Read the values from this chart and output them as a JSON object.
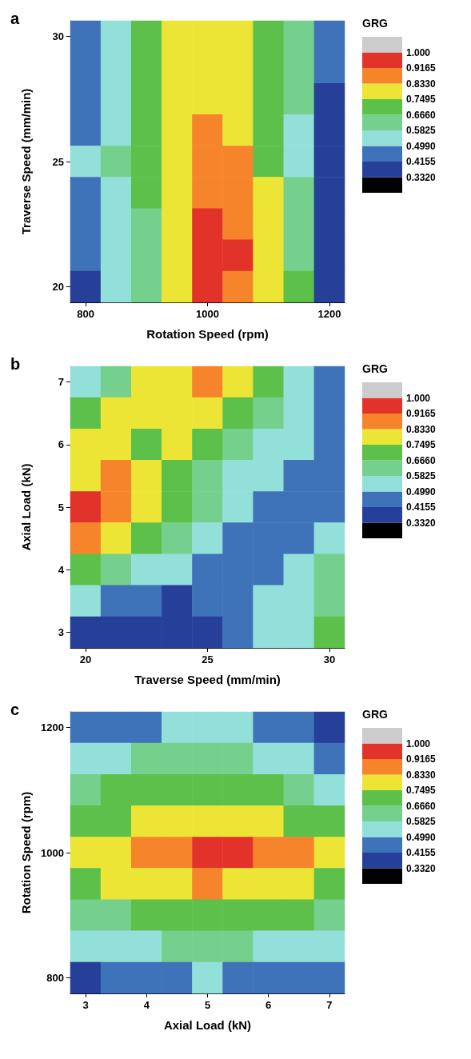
{
  "chart_data": [
    {
      "type": "heatmap",
      "title": "a",
      "xlabel": "Rotation Speed (rpm)",
      "ylabel": "Traverse Speed (mm/min)",
      "clabel": "GRG",
      "categories": [
        "800",
        null,
        null,
        null,
        "1000",
        null,
        null,
        null,
        "1200"
      ],
      "y_categories": [
        "30",
        null,
        null,
        null,
        "25",
        null,
        null,
        null,
        "20"
      ],
      "cells": [
        [
          0.46,
          0.54,
          0.71,
          0.79,
          0.79,
          0.79,
          0.71,
          0.62,
          0.46
        ],
        [
          0.46,
          0.54,
          0.71,
          0.79,
          0.79,
          0.79,
          0.71,
          0.62,
          0.46
        ],
        [
          0.46,
          0.54,
          0.71,
          0.79,
          0.79,
          0.79,
          0.71,
          0.62,
          0.37
        ],
        [
          0.46,
          0.54,
          0.71,
          0.79,
          0.875,
          0.79,
          0.71,
          0.54,
          0.37
        ],
        [
          0.54,
          0.62,
          0.71,
          0.79,
          0.875,
          0.875,
          0.71,
          0.54,
          0.37
        ],
        [
          0.46,
          0.54,
          0.71,
          0.79,
          0.875,
          0.875,
          0.79,
          0.62,
          0.37
        ],
        [
          0.46,
          0.54,
          0.62,
          0.79,
          0.96,
          0.875,
          0.79,
          0.62,
          0.37
        ],
        [
          0.46,
          0.54,
          0.62,
          0.79,
          0.96,
          0.96,
          0.79,
          0.62,
          0.37
        ],
        [
          0.37,
          0.54,
          0.62,
          0.79,
          0.96,
          0.875,
          0.79,
          0.71,
          0.37
        ]
      ],
      "clim": [
        0.2485,
        1.0835
      ],
      "cticks": [
        {
          "value": 0.332,
          "label": "0.3320"
        },
        0.4155,
        {
          "value": 0.499,
          "label": "0.4990"
        },
        0.5825,
        {
          "value": 0.666,
          "label": "0.6660"
        },
        0.7495,
        {
          "value": 0.833,
          "label": "0.8330"
        },
        0.9165,
        {
          "value": 1,
          "label": "1.000"
        }
      ],
      "colors": [
        "#000000",
        "#263f99",
        "#3f73b9",
        "#93e0da",
        "#74d08c",
        "#5cc04a",
        "#ece535",
        "#f5842a",
        "#e2332a",
        "#cccccc"
      ]
    },
    {
      "type": "heatmap",
      "title": "b",
      "xlabel": "Traverse Speed (mm/min)",
      "ylabel": "Axial Load (kN)",
      "clabel": "GRG",
      "categories": [
        "20",
        null,
        null,
        null,
        "25",
        null,
        null,
        null,
        "30"
      ],
      "y_categories": [
        "7",
        null,
        "6",
        null,
        "5",
        null,
        "4",
        null,
        "3"
      ],
      "cells": [
        [
          0.54,
          0.62,
          0.79,
          0.79,
          0.875,
          0.79,
          0.71,
          0.54,
          0.46
        ],
        [
          0.71,
          0.79,
          0.79,
          0.79,
          0.79,
          0.71,
          0.62,
          0.54,
          0.46
        ],
        [
          0.79,
          0.79,
          0.71,
          0.79,
          0.71,
          0.62,
          0.54,
          0.54,
          0.46
        ],
        [
          0.79,
          0.875,
          0.79,
          0.71,
          0.62,
          0.54,
          0.54,
          0.46,
          0.46
        ],
        [
          0.96,
          0.875,
          0.79,
          0.71,
          0.62,
          0.54,
          0.46,
          0.46,
          0.46
        ],
        [
          0.875,
          0.79,
          0.71,
          0.62,
          0.54,
          0.46,
          0.46,
          0.46,
          0.54
        ],
        [
          0.71,
          0.62,
          0.54,
          0.54,
          0.46,
          0.46,
          0.46,
          0.54,
          0.62
        ],
        [
          0.54,
          0.46,
          0.46,
          0.37,
          0.46,
          0.46,
          0.54,
          0.54,
          0.62
        ],
        [
          0.37,
          0.37,
          0.37,
          0.37,
          0.37,
          0.46,
          0.54,
          0.54,
          0.71
        ]
      ],
      "clim": [
        0.2485,
        1.0835
      ],
      "cticks": [
        {
          "value": 0.332,
          "label": "0.3320"
        },
        0.4155,
        {
          "value": 0.499,
          "label": "0.4990"
        },
        0.5825,
        {
          "value": 0.666,
          "label": "0.6660"
        },
        0.7495,
        {
          "value": 0.833,
          "label": "0.8330"
        },
        0.9165,
        {
          "value": 1,
          "label": "1.000"
        }
      ],
      "colors": [
        "#000000",
        "#263f99",
        "#3f73b9",
        "#93e0da",
        "#74d08c",
        "#5cc04a",
        "#ece535",
        "#f5842a",
        "#e2332a",
        "#cccccc"
      ]
    },
    {
      "type": "heatmap",
      "title": "c",
      "xlabel": "Axial Load (kN)",
      "ylabel": "Rotation Speed (rpm)",
      "clabel": "GRG",
      "categories": [
        "3",
        null,
        "4",
        null,
        "5",
        null,
        "6",
        null,
        "7"
      ],
      "y_categories": [
        "1200",
        null,
        null,
        null,
        "1000",
        null,
        null,
        null,
        "800"
      ],
      "cells": [
        [
          0.46,
          0.46,
          0.46,
          0.54,
          0.54,
          0.54,
          0.46,
          0.46,
          0.37
        ],
        [
          0.54,
          0.54,
          0.62,
          0.62,
          0.62,
          0.62,
          0.54,
          0.54,
          0.46
        ],
        [
          0.62,
          0.71,
          0.71,
          0.71,
          0.71,
          0.71,
          0.71,
          0.62,
          0.54
        ],
        [
          0.71,
          0.71,
          0.79,
          0.79,
          0.79,
          0.79,
          0.79,
          0.71,
          0.71
        ],
        [
          0.79,
          0.79,
          0.875,
          0.875,
          0.96,
          0.96,
          0.875,
          0.875,
          0.79
        ],
        [
          0.71,
          0.79,
          0.79,
          0.79,
          0.875,
          0.79,
          0.79,
          0.79,
          0.71
        ],
        [
          0.62,
          0.62,
          0.71,
          0.71,
          0.71,
          0.71,
          0.71,
          0.71,
          0.62
        ],
        [
          0.54,
          0.54,
          0.54,
          0.62,
          0.62,
          0.62,
          0.54,
          0.54,
          0.54
        ],
        [
          0.37,
          0.46,
          0.46,
          0.46,
          0.54,
          0.46,
          0.46,
          0.46,
          0.46
        ]
      ],
      "clim": [
        0.2485,
        1.0835
      ],
      "cticks": [
        {
          "value": 0.332,
          "label": "0.3320"
        },
        0.4155,
        {
          "value": 0.499,
          "label": "0.4990"
        },
        0.5825,
        {
          "value": 0.666,
          "label": "0.6660"
        },
        0.7495,
        {
          "value": 0.833,
          "label": "0.8330"
        },
        0.9165,
        {
          "value": 1,
          "label": "1.000"
        }
      ],
      "colors": [
        "#000000",
        "#263f99",
        "#3f73b9",
        "#93e0da",
        "#74d08c",
        "#5cc04a",
        "#ece535",
        "#f5842a",
        "#e2332a",
        "#cccccc"
      ]
    }
  ]
}
